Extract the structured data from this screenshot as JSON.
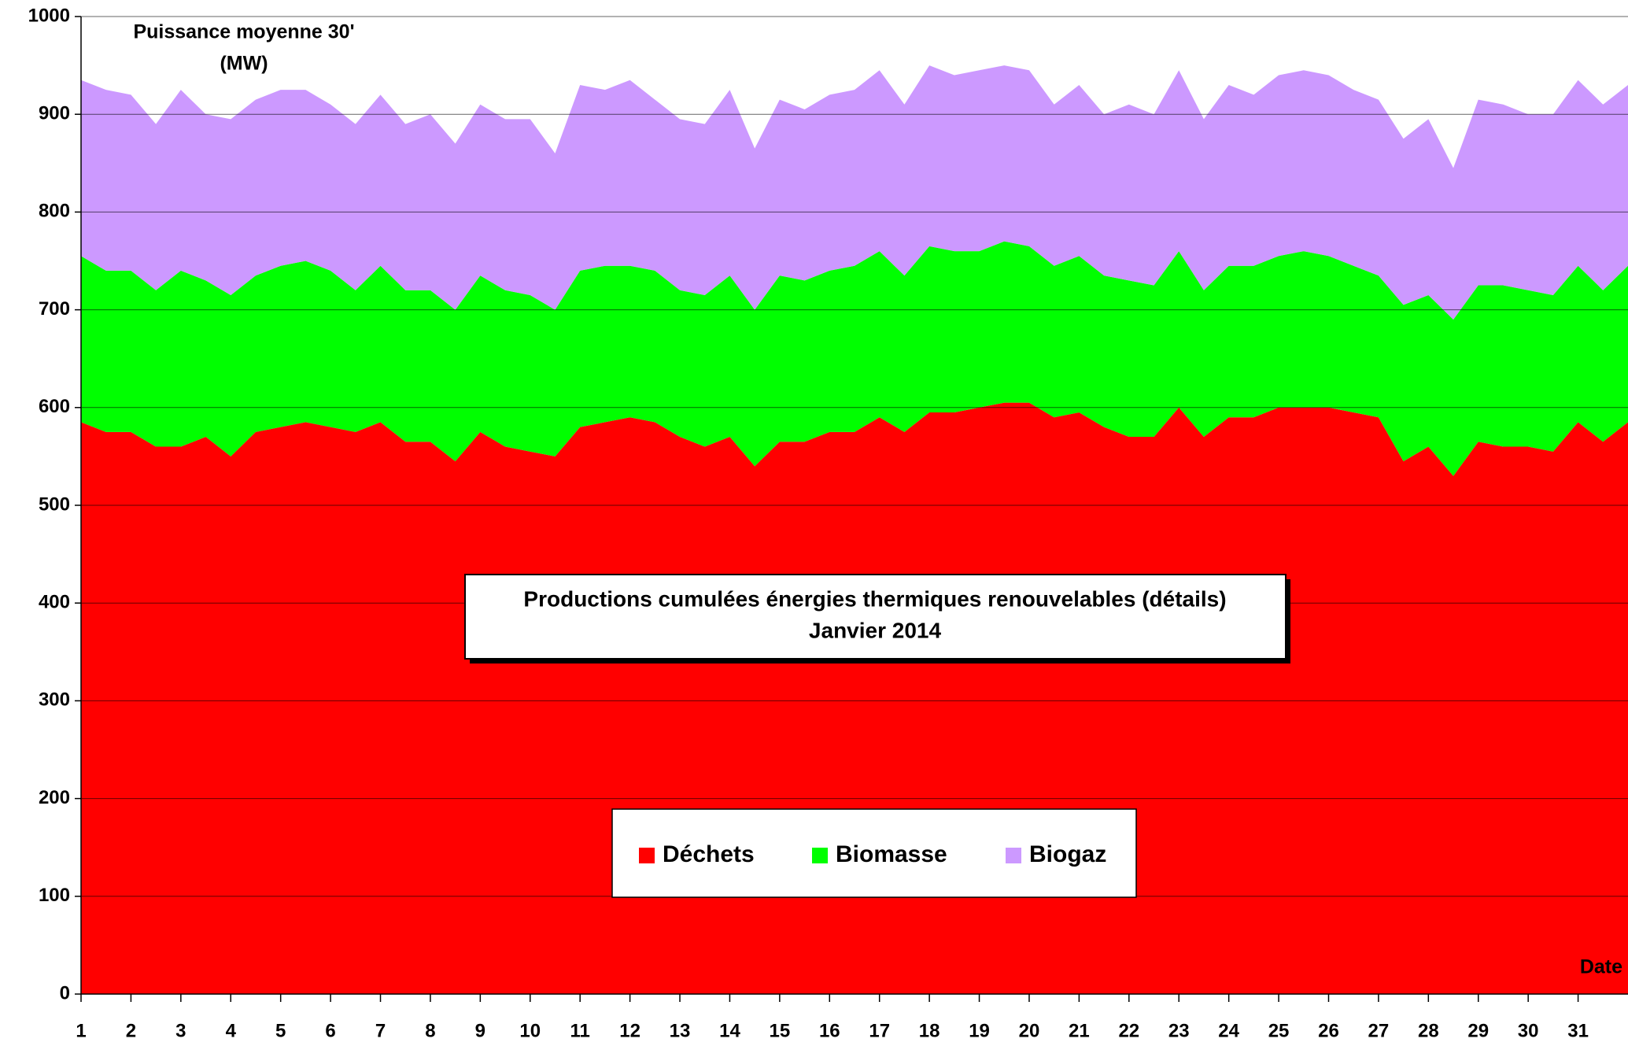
{
  "chart_data": {
    "type": "area",
    "title": "Productions cumulées énergies thermiques renouvelables (détails)",
    "subtitle": "Janvier 2014",
    "y_label_lines": [
      "Puissance moyenne 30'",
      "(MW)"
    ],
    "x_label": "Date",
    "stacked": true,
    "grid": true,
    "x": [
      1,
      1.5,
      2,
      2.5,
      3,
      3.5,
      4,
      4.5,
      5,
      5.5,
      6,
      6.5,
      7,
      7.5,
      8,
      8.5,
      9,
      9.5,
      10,
      10.5,
      11,
      11.5,
      12,
      12.5,
      13,
      13.5,
      14,
      14.5,
      15,
      15.5,
      16,
      16.5,
      17,
      17.5,
      18,
      18.5,
      19,
      19.5,
      20,
      20.5,
      21,
      21.5,
      22,
      22.5,
      23,
      23.5,
      24,
      24.5,
      25,
      25.5,
      26,
      26.5,
      27,
      27.5,
      28,
      28.5,
      29,
      29.5,
      30,
      30.5,
      31,
      31.5,
      32
    ],
    "series": [
      {
        "name": "Déchets",
        "color": "#ff0000",
        "values": [
          585,
          575,
          575,
          560,
          560,
          570,
          550,
          575,
          580,
          585,
          580,
          575,
          585,
          565,
          565,
          545,
          575,
          560,
          555,
          550,
          580,
          585,
          590,
          585,
          570,
          560,
          570,
          540,
          565,
          565,
          575,
          575,
          590,
          575,
          595,
          595,
          600,
          605,
          605,
          590,
          595,
          580,
          570,
          570,
          600,
          570,
          590,
          590,
          600,
          600,
          600,
          595,
          590,
          545,
          560,
          530,
          565,
          560,
          560,
          555,
          585,
          565,
          585
        ]
      },
      {
        "name": "Biomasse",
        "color": "#00ff00",
        "values": [
          170,
          165,
          165,
          160,
          180,
          160,
          165,
          160,
          165,
          165,
          160,
          145,
          160,
          155,
          155,
          155,
          160,
          160,
          160,
          150,
          160,
          160,
          155,
          155,
          150,
          155,
          165,
          160,
          170,
          165,
          165,
          170,
          170,
          160,
          170,
          165,
          160,
          165,
          160,
          155,
          160,
          155,
          160,
          155,
          160,
          150,
          155,
          155,
          155,
          160,
          155,
          150,
          145,
          160,
          155,
          160,
          160,
          165,
          160,
          160,
          160,
          155,
          160
        ]
      },
      {
        "name": "Biogaz",
        "color": "#cc99ff",
        "values": [
          180,
          185,
          180,
          170,
          185,
          170,
          180,
          180,
          180,
          175,
          170,
          170,
          175,
          170,
          180,
          170,
          175,
          175,
          180,
          160,
          190,
          180,
          190,
          175,
          175,
          175,
          190,
          165,
          180,
          175,
          180,
          180,
          185,
          175,
          185,
          180,
          185,
          180,
          180,
          165,
          175,
          165,
          180,
          175,
          185,
          175,
          185,
          175,
          185,
          185,
          185,
          180,
          180,
          170,
          180,
          155,
          190,
          185,
          180,
          185,
          190,
          190,
          185
        ]
      }
    ],
    "xlim": [
      1,
      32
    ],
    "xticks": [
      1,
      2,
      3,
      4,
      5,
      6,
      7,
      8,
      9,
      10,
      11,
      12,
      13,
      14,
      15,
      16,
      17,
      18,
      19,
      20,
      21,
      22,
      23,
      24,
      25,
      26,
      27,
      28,
      29,
      30,
      31
    ],
    "ylim": [
      0,
      1000
    ],
    "yticks": [
      0,
      100,
      200,
      300,
      400,
      500,
      600,
      700,
      800,
      900,
      1000
    ]
  }
}
